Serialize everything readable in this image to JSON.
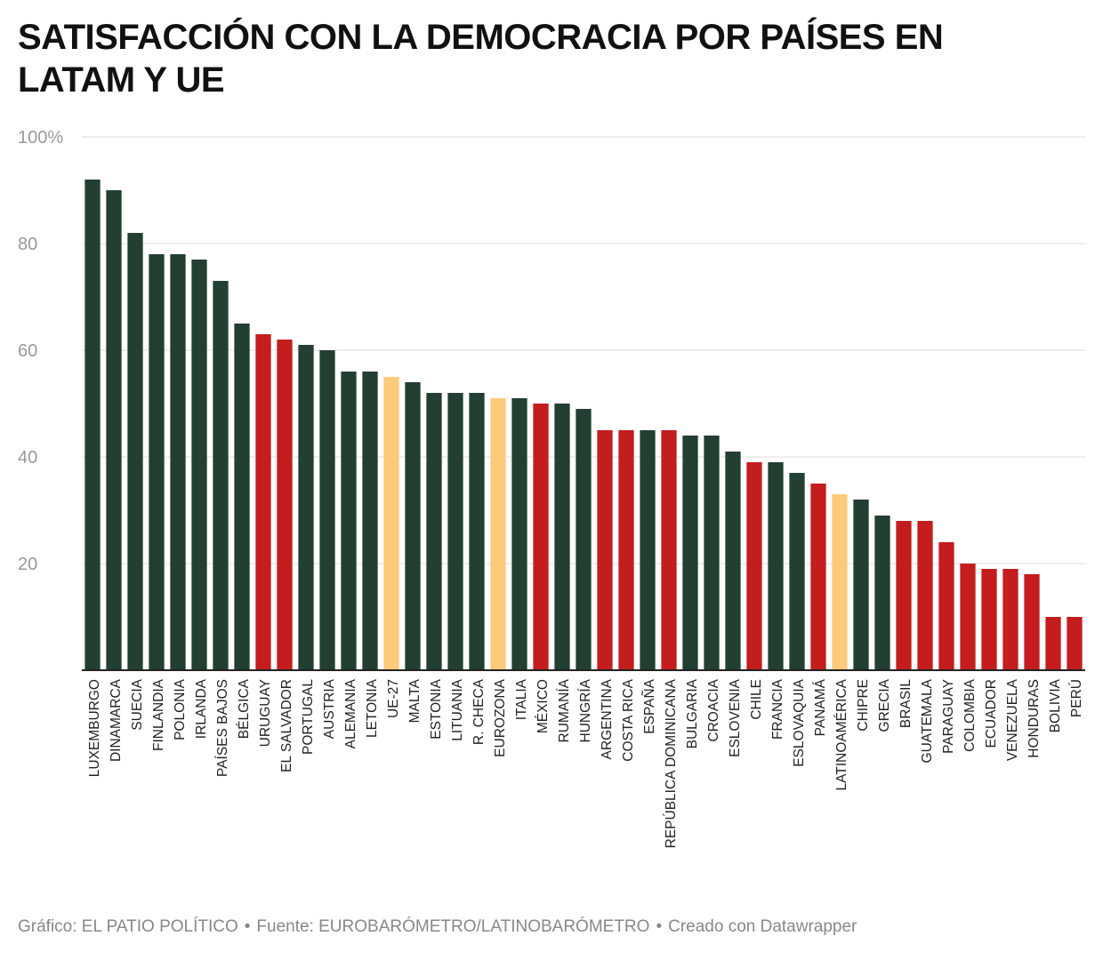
{
  "title": "SATISFACCIÓN CON LA DEMOCRACIA POR PAÍSES EN LATAM Y UE",
  "footer": {
    "graphic": "Gráfico: EL PATIO POLÍTICO",
    "source": "Fuente: EUROBARÓMETRO/LATINOBARÓMETRO",
    "created": "Creado con Datawrapper",
    "separator": "•"
  },
  "colors": {
    "eu": "#233f32",
    "latam": "#c41d1d",
    "aggregate": "#fdca7a",
    "grid": "#dddddd",
    "axis_text": "#999999",
    "baseline": "#222222"
  },
  "chart_data": {
    "type": "bar",
    "title": "SATISFACCIÓN CON LA DEMOCRACIA POR PAÍSES EN LATAM Y UE",
    "ylim": [
      0,
      100
    ],
    "yticks": [
      20,
      40,
      60,
      80,
      100
    ],
    "ytick_labels": [
      "20",
      "40",
      "60",
      "80",
      "100%"
    ],
    "grid": true,
    "categories": [
      "LUXEMBURGO",
      "DINAMARCA",
      "SUECIA",
      "FINLANDIA",
      "POLONIA",
      "IRLANDA",
      "PAÍSES BAJOS",
      "BÉLGICA",
      "URUGUAY",
      "EL SALVADOR",
      "PORTUGAL",
      "AUSTRIA",
      "ALEMANIA",
      "LETONIA",
      "UE-27",
      "MALTA",
      "ESTONIA",
      "LITUANIA",
      "R. CHECA",
      "EUROZONA",
      "ITALIA",
      "MÉXICO",
      "RUMANÍA",
      "HUNGRÍA",
      "ARGENTINA",
      "COSTA RICA",
      "ESPAÑA",
      "REPÚBLICA DOMINICANA",
      "BULGARIA",
      "CROACIA",
      "ESLOVENIA",
      "CHILE",
      "FRANCIA",
      "ESLOVAQUIA",
      "PANAMÁ",
      "LATINOAMÉRICA",
      "CHIPRE",
      "GRECIA",
      "BRASIL",
      "GUATEMALA",
      "PARAGUAY",
      "COLOMBIA",
      "ECUADOR",
      "VENEZUELA",
      "HONDURAS",
      "BOLIVIA",
      "PERÚ"
    ],
    "values": [
      92,
      90,
      82,
      78,
      78,
      77,
      73,
      65,
      63,
      62,
      61,
      60,
      56,
      56,
      55,
      54,
      52,
      52,
      52,
      51,
      51,
      50,
      50,
      49,
      45,
      45,
      45,
      45,
      44,
      44,
      41,
      39,
      39,
      37,
      35,
      33,
      32,
      29,
      28,
      28,
      24,
      20,
      19,
      19,
      18,
      10,
      10
    ],
    "groups": [
      "eu",
      "eu",
      "eu",
      "eu",
      "eu",
      "eu",
      "eu",
      "eu",
      "latam",
      "latam",
      "eu",
      "eu",
      "eu",
      "eu",
      "aggregate",
      "eu",
      "eu",
      "eu",
      "eu",
      "aggregate",
      "eu",
      "latam",
      "eu",
      "eu",
      "latam",
      "latam",
      "eu",
      "latam",
      "eu",
      "eu",
      "eu",
      "latam",
      "eu",
      "eu",
      "latam",
      "aggregate",
      "eu",
      "eu",
      "latam",
      "latam",
      "latam",
      "latam",
      "latam",
      "latam",
      "latam",
      "latam",
      "latam"
    ]
  }
}
